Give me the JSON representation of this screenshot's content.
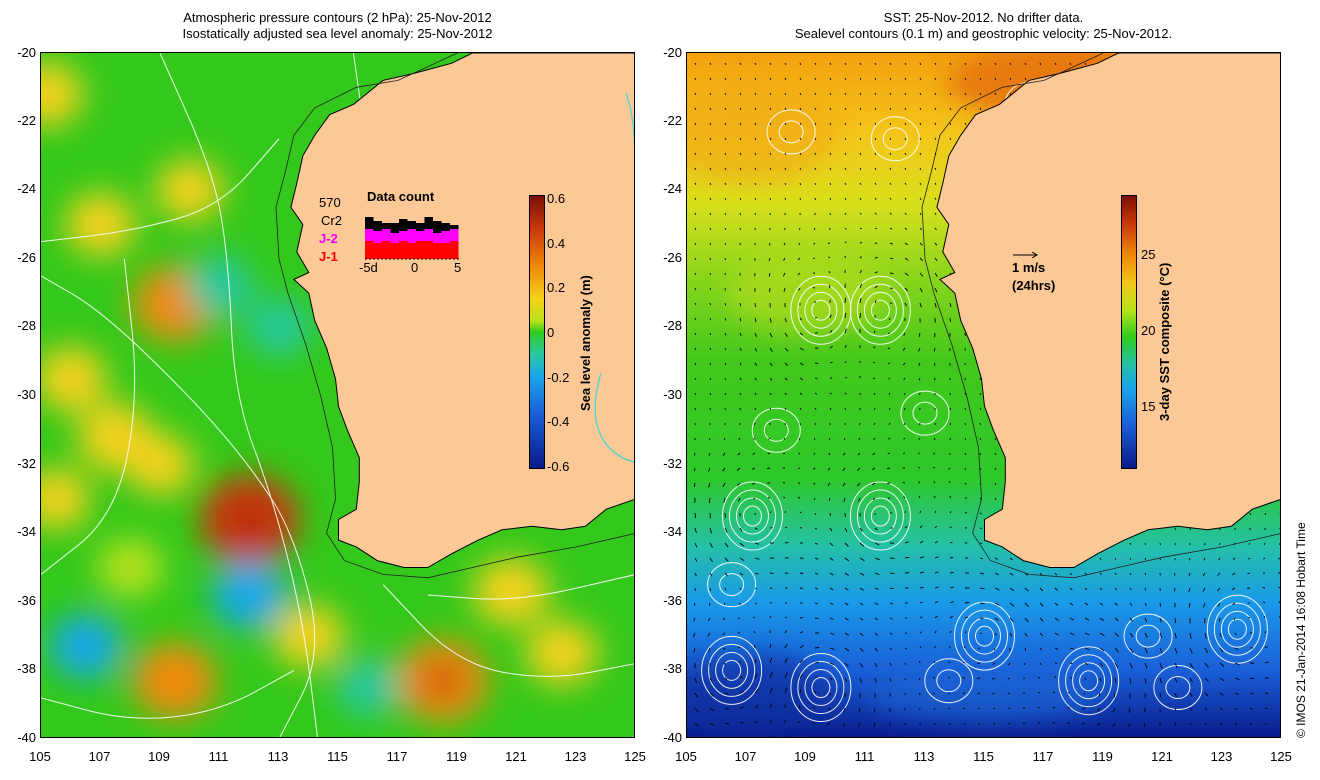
{
  "left_panel": {
    "title_line1": "Atmospheric pressure contours (2 hPa): 25-Nov-2012",
    "title_line2": "Isostatically adjusted sea level anomaly: 25-Nov-2012",
    "colorbar": {
      "title": "Sea level anomaly (m)",
      "ticks": [
        "0.6",
        "0.4",
        "0.2",
        "0",
        "-0.2",
        "-0.4",
        "-0.6"
      ],
      "min": -0.6,
      "max": 0.6
    },
    "data_count": {
      "title": "Data count",
      "count": "570",
      "label_cr2": "Cr2",
      "label_j2": "J-2",
      "label_j1": "J-1",
      "x_ticks": [
        "-5d",
        "0",
        "5"
      ],
      "j2_color": "#ff00ff",
      "j1_color": "#ff0000"
    },
    "features": {
      "highs": [
        {
          "lon": 109.5,
          "lat": -27.3,
          "level": 0.35
        },
        {
          "lon": 112.0,
          "lat": -33.6,
          "level": 0.55
        },
        {
          "lon": 118.5,
          "lat": -38.3,
          "level": 0.45
        },
        {
          "lon": 109.5,
          "lat": -38.3,
          "level": 0.35
        },
        {
          "lon": 107.5,
          "lat": -31.2,
          "level": 0.25
        },
        {
          "lon": 120.8,
          "lat": -35.7,
          "level": 0.25
        },
        {
          "lon": 105.2,
          "lat": -21.2,
          "level": 0.2
        }
      ],
      "lows": [
        {
          "lon": 112.0,
          "lat": -35.8,
          "level": -0.25
        },
        {
          "lon": 111.0,
          "lat": -26.8,
          "level": -0.15
        },
        {
          "lon": 106.5,
          "lat": -37.3,
          "level": -0.2
        }
      ]
    }
  },
  "right_panel": {
    "title_line1": "SST: 25-Nov-2012. No drifter data.",
    "title_line2": "Sealevel contours (0.1 m) and geostrophic velocity: 25-Nov-2012.",
    "colorbar": {
      "title": "3-day SST composite (°C)",
      "ticks": [
        "25",
        "20",
        "15"
      ],
      "min": 11,
      "max": 29
    },
    "velocity_legend": {
      "label": "1 m/s",
      "sub_label": "(24hrs)"
    },
    "eddies": [
      {
        "lon": 111.5,
        "lat": -33.5
      },
      {
        "lon": 118.5,
        "lat": -38.3
      },
      {
        "lon": 106.5,
        "lat": -38.0
      },
      {
        "lon": 109.5,
        "lat": -38.5
      },
      {
        "lon": 109.5,
        "lat": -27.5
      },
      {
        "lon": 111.5,
        "lat": -27.5
      },
      {
        "lon": 123.5,
        "lat": -36.8
      },
      {
        "lon": 115.0,
        "lat": -37.0
      },
      {
        "lon": 107.2,
        "lat": -33.5
      }
    ]
  },
  "axes": {
    "x_ticks": [
      "105",
      "107",
      "109",
      "111",
      "113",
      "115",
      "117",
      "119",
      "121",
      "123",
      "125"
    ],
    "y_ticks": [
      "-20",
      "-22",
      "-24",
      "-26",
      "-28",
      "-30",
      "-32",
      "-34",
      "-36",
      "-38",
      "-40"
    ],
    "lon_range": [
      105,
      125
    ],
    "lat_range": [
      -40,
      -20
    ]
  },
  "credit": "© IMOS 21-Jan-2014 16:08 Hobart Time",
  "colors": {
    "land": "#fbc896",
    "ocean_green": "#2ecc1e",
    "coast": "#000000",
    "contour": "#ffffff"
  }
}
